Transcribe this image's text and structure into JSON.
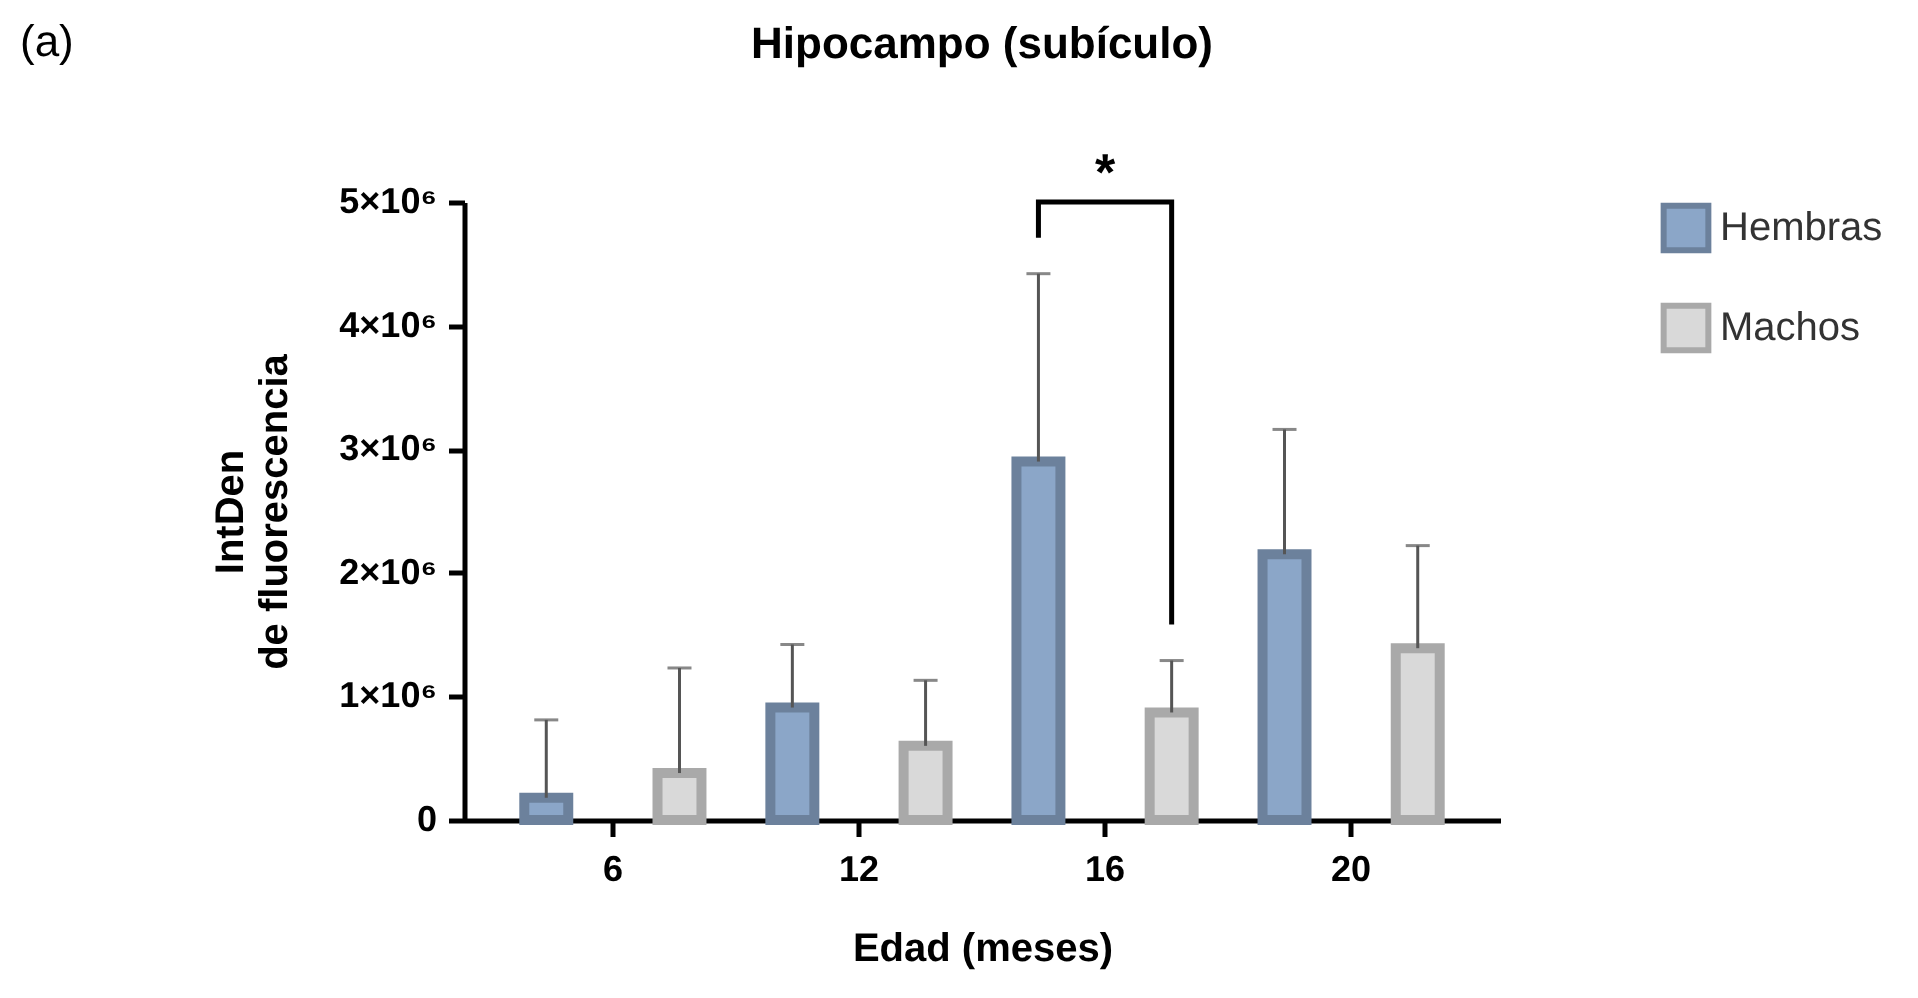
{
  "chart_data": {
    "type": "bar",
    "title": "Hipocampo (subículo)",
    "xlabel": "Edad (meses)",
    "ylabel": "IntDen\nde fluorescencia",
    "categories": [
      "6",
      "12",
      "16",
      "20"
    ],
    "series": [
      {
        "name": "Hembras",
        "color": "#8ba6c8",
        "values": [
          180000,
          910000,
          2900000,
          2150000
        ],
        "errors": [
          [
            180000,
            810000
          ],
          [
            910000,
            1420000
          ],
          [
            2900000,
            4420000
          ],
          [
            2150000,
            3160000
          ]
        ]
      },
      {
        "name": "Machos",
        "color": "#d9d9d9",
        "values": [
          380000,
          600000,
          870000,
          1390000
        ],
        "errors": [
          [
            380000,
            1230000
          ],
          [
            600000,
            1130000
          ],
          [
            870000,
            1290000
          ],
          [
            1390000,
            2220000
          ]
        ]
      }
    ],
    "ylim": [
      0,
      5000000
    ],
    "yticks": [
      0,
      {
        "value": 1000000,
        "label": "1×10⁶"
      },
      {
        "value": 2000000,
        "label": "2×10⁶"
      },
      {
        "value": 3000000,
        "label": "3×10⁶"
      },
      {
        "value": 4000000,
        "label": "4×10⁶"
      },
      {
        "value": 5000000,
        "label": "5×10⁶"
      }
    ],
    "grid": false,
    "legend": "top right",
    "annotations": [
      "(a)",
      "*"
    ]
  }
}
